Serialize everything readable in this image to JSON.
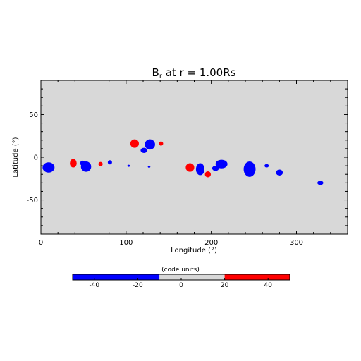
{
  "chart_data": {
    "type": "heatmap",
    "title": "B",
    "title_subscript": "r",
    "title_rest": " at r = 1.00Rs",
    "xlabel": "Longitude (°)",
    "ylabel": "Latitude (°)",
    "xlim": [
      0,
      360
    ],
    "ylim": [
      -90,
      90
    ],
    "x_ticks": [
      0,
      100,
      200,
      300
    ],
    "y_ticks": [
      -50,
      0,
      50
    ],
    "background_color": "#d8d8d8",
    "positive_color": "#ff0000",
    "negative_color": "#0000ff",
    "regions": [
      {
        "polarity": "negative",
        "lon": 9,
        "lat": -12,
        "rlon": 7,
        "rlat": 6
      },
      {
        "polarity": "positive",
        "lon": 38,
        "lat": -7,
        "rlon": 4,
        "rlat": 5
      },
      {
        "polarity": "negative",
        "lon": 53,
        "lat": -11,
        "rlon": 6,
        "rlat": 6
      },
      {
        "polarity": "negative",
        "lon": 49,
        "lat": -7,
        "rlon": 3,
        "rlat": 3
      },
      {
        "polarity": "positive",
        "lon": 70,
        "lat": -8,
        "rlon": 2.5,
        "rlat": 2.5
      },
      {
        "polarity": "negative",
        "lon": 81,
        "lat": -6,
        "rlon": 2.5,
        "rlat": 2.5
      },
      {
        "polarity": "negative",
        "lon": 103,
        "lat": -10,
        "rlon": 1.5,
        "rlat": 1.2
      },
      {
        "polarity": "positive",
        "lon": 110,
        "lat": 16,
        "rlon": 5,
        "rlat": 5
      },
      {
        "polarity": "negative",
        "lon": 128,
        "lat": 15,
        "rlon": 6,
        "rlat": 6
      },
      {
        "polarity": "negative",
        "lon": 121,
        "lat": 8,
        "rlon": 4,
        "rlat": 3
      },
      {
        "polarity": "negative",
        "lon": 127,
        "lat": -11,
        "rlon": 1.5,
        "rlat": 1.2
      },
      {
        "polarity": "positive",
        "lon": 141,
        "lat": 16,
        "rlon": 2.5,
        "rlat": 2.5
      },
      {
        "polarity": "positive",
        "lon": 175,
        "lat": -12,
        "rlon": 5,
        "rlat": 5
      },
      {
        "polarity": "negative",
        "lon": 187,
        "lat": -14,
        "rlon": 5,
        "rlat": 7
      },
      {
        "polarity": "positive",
        "lon": 196,
        "lat": -20,
        "rlon": 3.5,
        "rlat": 3.5
      },
      {
        "polarity": "negative",
        "lon": 212,
        "lat": -8,
        "rlon": 7,
        "rlat": 5
      },
      {
        "polarity": "negative",
        "lon": 205,
        "lat": -13,
        "rlon": 4,
        "rlat": 3
      },
      {
        "polarity": "negative",
        "lon": 245,
        "lat": -14,
        "rlon": 7,
        "rlat": 9
      },
      {
        "polarity": "negative",
        "lon": 265,
        "lat": -10,
        "rlon": 2.5,
        "rlat": 2
      },
      {
        "polarity": "negative",
        "lon": 280,
        "lat": -18,
        "rlon": 4,
        "rlat": 3.5
      },
      {
        "polarity": "negative",
        "lon": 328,
        "lat": -30,
        "rlon": 3.5,
        "rlat": 2.5
      }
    ],
    "colorbar": {
      "label": "(code units)",
      "ticks": [
        -40,
        -20,
        0,
        20,
        40
      ],
      "range": [
        -50,
        50
      ],
      "bins": [
        {
          "from": -50,
          "to": -10,
          "color": "#0000ff"
        },
        {
          "from": -10,
          "to": 20,
          "color": "#d8d8d8"
        },
        {
          "from": 20,
          "to": 50,
          "color": "#ff0000"
        }
      ]
    }
  }
}
